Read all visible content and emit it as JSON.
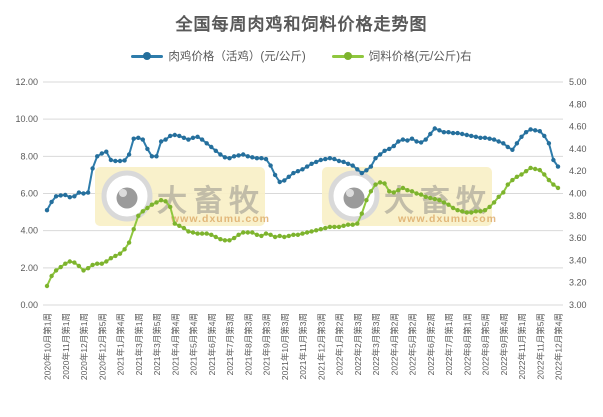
{
  "header": {
    "title": "全国每周肉鸡和饲料价格走势图"
  },
  "legend": {
    "items": [
      {
        "label": "肉鸡价格（活鸡）(元/公斤)",
        "color": "#2e7cab",
        "marker_color": "#256f9c"
      },
      {
        "label": "饲料价格(元/公斤)右",
        "color": "#8fc73e",
        "marker_color": "#7db32e"
      }
    ]
  },
  "watermark": {
    "brand": "大畜牧",
    "url": "www.dxumu.com",
    "box_fill": "#f8f0c5",
    "brand_color": "rgba(150,146,140,0.55)",
    "url_color": "rgba(217,163,93,0.75)"
  },
  "chart_data": {
    "type": "line",
    "title": "全国每周肉鸡和饲料价格走势图",
    "subtitle": "",
    "grid": "horizontal",
    "grid_color": "#d9d9d9",
    "legend_position": "top",
    "x_note": "weekly data points; axis labeled every 4th week",
    "x_tick_labels": [
      "2020年10月第1周",
      "2020年11月第1周",
      "2020年12月第1周",
      "2020年12月第5周",
      "2021年1月第4周",
      "2021年3月第1周",
      "2021年3月第5周",
      "2021年4月第4周",
      "2021年5月第4周",
      "2021年6月第4周",
      "2021年7月第3周",
      "2021年8月第3周",
      "2021年9月第3周",
      "2021年10月第3周",
      "2021年11月第3周",
      "2021年12月第3周",
      "2022年1月第2周",
      "2022年2月第3周",
      "2022年3月第3周",
      "2022年4月第2周",
      "2022年5月第2周",
      "2022年6月第2周",
      "2022年7月第1周",
      "2022年8月第1周",
      "2022年8月第5周",
      "2022年9月第4周",
      "2022年11月第1周",
      "2022年11月第5周",
      "2022年12月第4周"
    ],
    "left_axis": {
      "min": 0,
      "max": 12,
      "step": 2,
      "tick_labels": [
        "0.00",
        "2.00",
        "4.00",
        "6.00",
        "8.00",
        "10.00",
        "12.00"
      ]
    },
    "right_axis": {
      "min": 3,
      "max": 5,
      "step": 0.2,
      "tick_labels": [
        "3.00",
        "3.20",
        "3.40",
        "3.60",
        "3.80",
        "4.00",
        "4.20",
        "4.40",
        "4.60",
        "4.80",
        "5.00"
      ]
    },
    "series": [
      {
        "name": "肉鸡价格（活鸡）(元/公斤)",
        "axis": "left",
        "color": "#2e7cab",
        "marker_color": "#256f9c",
        "values": [
          5.1,
          5.55,
          5.85,
          5.9,
          5.92,
          5.8,
          5.85,
          6.05,
          6.0,
          6.05,
          7.35,
          8.0,
          8.15,
          8.25,
          7.8,
          7.75,
          7.75,
          7.78,
          8.1,
          8.95,
          9.0,
          8.9,
          8.4,
          8.0,
          8.0,
          8.8,
          8.9,
          9.1,
          9.15,
          9.1,
          9.0,
          8.9,
          9.0,
          9.05,
          8.9,
          8.7,
          8.5,
          8.3,
          8.1,
          7.95,
          7.9,
          8.0,
          8.05,
          8.1,
          8.0,
          7.95,
          7.9,
          7.9,
          7.85,
          7.5,
          7.0,
          6.62,
          6.7,
          6.9,
          7.1,
          7.2,
          7.3,
          7.45,
          7.6,
          7.7,
          7.8,
          7.85,
          7.9,
          7.85,
          7.75,
          7.7,
          7.6,
          7.5,
          7.3,
          7.1,
          7.25,
          7.45,
          7.9,
          8.1,
          8.3,
          8.4,
          8.55,
          8.8,
          8.9,
          8.85,
          8.95,
          8.8,
          8.75,
          8.9,
          9.2,
          9.5,
          9.4,
          9.3,
          9.3,
          9.25,
          9.25,
          9.2,
          9.15,
          9.1,
          9.05,
          9.0,
          9.0,
          8.95,
          8.9,
          8.8,
          8.7,
          8.5,
          8.35,
          8.7,
          9.05,
          9.3,
          9.45,
          9.4,
          9.35,
          9.1,
          8.7,
          7.8,
          7.45
        ]
      },
      {
        "name": "饲料价格(元/公斤)右",
        "axis": "right",
        "color": "#8fc73e",
        "marker_color": "#7db32e",
        "values": [
          3.17,
          3.26,
          3.31,
          3.34,
          3.37,
          3.39,
          3.38,
          3.35,
          3.31,
          3.33,
          3.36,
          3.37,
          3.37,
          3.39,
          3.42,
          3.44,
          3.46,
          3.5,
          3.56,
          3.68,
          3.8,
          3.84,
          3.87,
          3.9,
          3.92,
          3.94,
          3.93,
          3.88,
          3.73,
          3.71,
          3.69,
          3.66,
          3.65,
          3.64,
          3.64,
          3.64,
          3.63,
          3.61,
          3.59,
          3.58,
          3.58,
          3.6,
          3.63,
          3.65,
          3.65,
          3.65,
          3.63,
          3.62,
          3.64,
          3.63,
          3.61,
          3.62,
          3.61,
          3.62,
          3.63,
          3.63,
          3.64,
          3.65,
          3.66,
          3.67,
          3.68,
          3.69,
          3.7,
          3.7,
          3.7,
          3.71,
          3.72,
          3.72,
          3.73,
          3.82,
          3.94,
          4.02,
          4.08,
          4.1,
          4.09,
          4.02,
          4.01,
          4.03,
          4.05,
          4.03,
          4.02,
          4.0,
          3.99,
          3.97,
          3.96,
          3.95,
          3.94,
          3.92,
          3.9,
          3.87,
          3.85,
          3.84,
          3.83,
          3.83,
          3.84,
          3.84,
          3.85,
          3.88,
          3.92,
          3.97,
          4.01,
          4.08,
          4.12,
          4.15,
          4.17,
          4.2,
          4.23,
          4.22,
          4.21,
          4.17,
          4.12,
          4.08,
          4.05
        ]
      }
    ]
  }
}
